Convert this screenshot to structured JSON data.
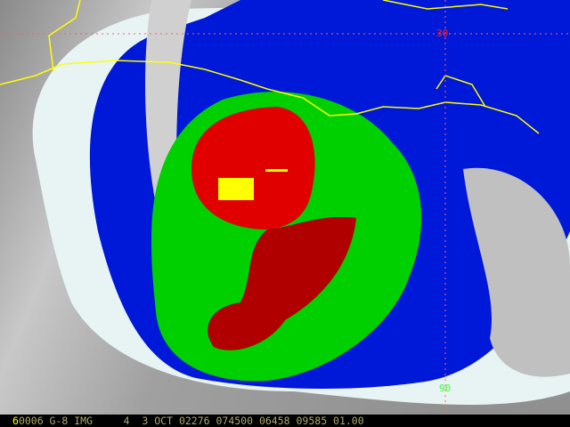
{
  "image": {
    "type": "satellite-infrared-enhanced",
    "colors": {
      "cold_tops": "#ffff00",
      "very_cold": "#e00000",
      "dark_core": "#a00000",
      "cold": "#00e000",
      "cool": "#0018e0",
      "warm_edge": "#a0ffff",
      "clear": "#808080",
      "coastline": "#ffff00",
      "grid": "#ff6060"
    }
  },
  "grid_labels": {
    "latitude": "30",
    "longitude": "90"
  },
  "status_bar": {
    "frame": "6",
    "text": "0006 G-8 IMG     4  3 OCT 02276 074500 06458 09585 01.00"
  }
}
